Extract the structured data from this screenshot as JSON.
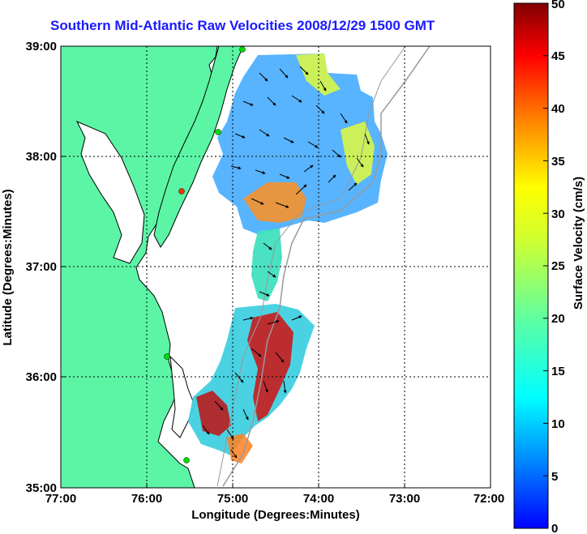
{
  "title": "Southern Mid-Atlantic Raw Velocities 2008/12/29 1500 GMT",
  "x_axis": {
    "label": "Longitude (Degrees:Minutes)",
    "ticks": [
      "77:00",
      "76:00",
      "75:00",
      "74:00",
      "73:00",
      "72:00"
    ]
  },
  "y_axis": {
    "label": "Latitude (Degrees:Minutes)",
    "ticks": [
      "39:00",
      "38:00",
      "37:00",
      "36:00",
      "35:00"
    ]
  },
  "colorbar": {
    "label": "Surface Velocity (cm/s)",
    "ticks": [
      "50",
      "45",
      "40",
      "35",
      "30",
      "25",
      "20",
      "15",
      "10",
      "5",
      "0"
    ],
    "min": 0,
    "max": 50
  },
  "colors": {
    "land": "#5cf5a6",
    "water": "#ffffff",
    "title": "#1a1aff",
    "stations": "#00dd00",
    "station_highlight": "#ff3300"
  },
  "map": {
    "lon_range": [
      -77,
      -72
    ],
    "lat_range": [
      35,
      39
    ],
    "grid": "dotted"
  }
}
